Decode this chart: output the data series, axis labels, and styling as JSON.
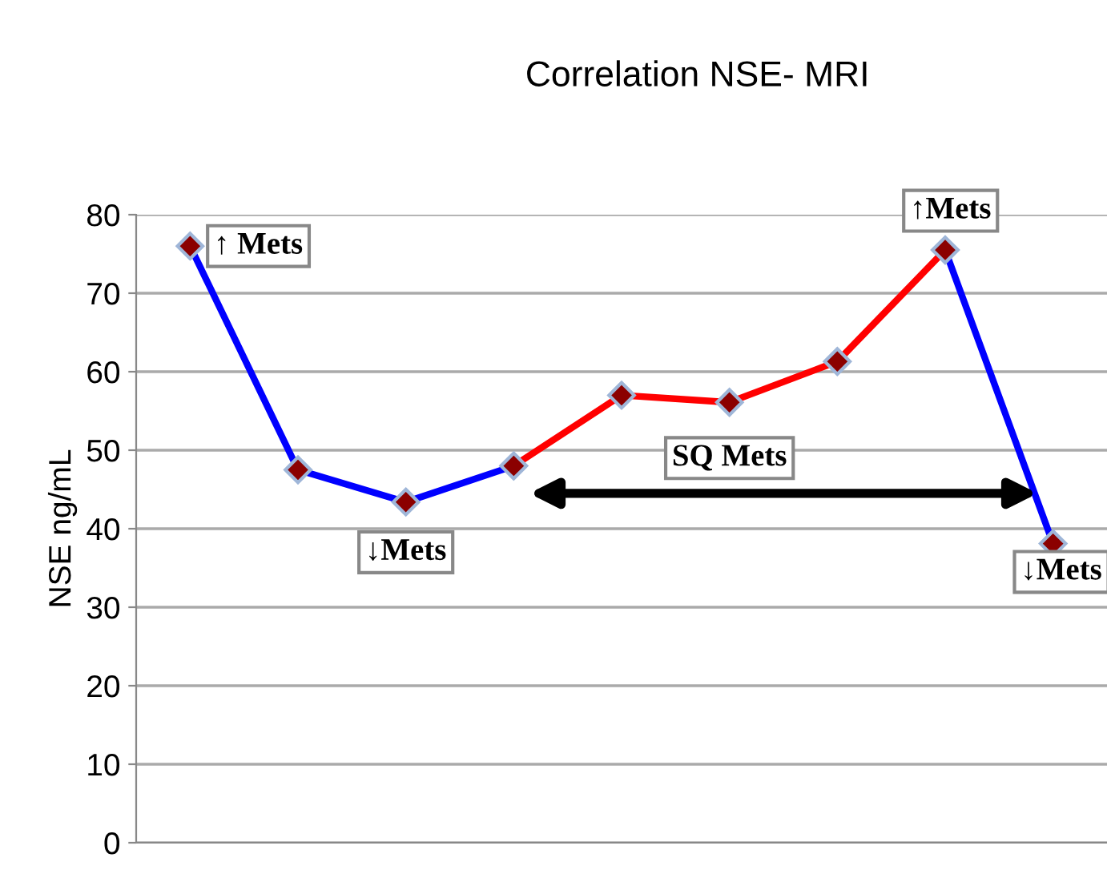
{
  "chart_data": {
    "type": "line",
    "title": "Correlation NSE- MRI",
    "ylabel": "NSE ng/mL",
    "categories": [
      null,
      null,
      null,
      null,
      null,
      null,
      null,
      null,
      null
    ],
    "series": [
      {
        "color": "#0000ff",
        "values": [
          76,
          47.5,
          43.4,
          48,
          null,
          null,
          null,
          75.5,
          38.1
        ]
      },
      {
        "color": "#ff0000",
        "values": [
          null,
          null,
          null,
          48,
          57,
          56.1,
          61.3,
          75.5,
          null
        ]
      }
    ],
    "ylim": [
      0,
      80
    ],
    "yticks": [
      0,
      10,
      20,
      30,
      40,
      50,
      60,
      70,
      80
    ],
    "grid": "y",
    "tick_labels": "y",
    "marker": "diamond",
    "line_style": "solid",
    "annotations": [
      "↑ Mets",
      "↓Mets",
      "SQ Mets",
      "↑Mets",
      "↓Mets"
    ]
  }
}
